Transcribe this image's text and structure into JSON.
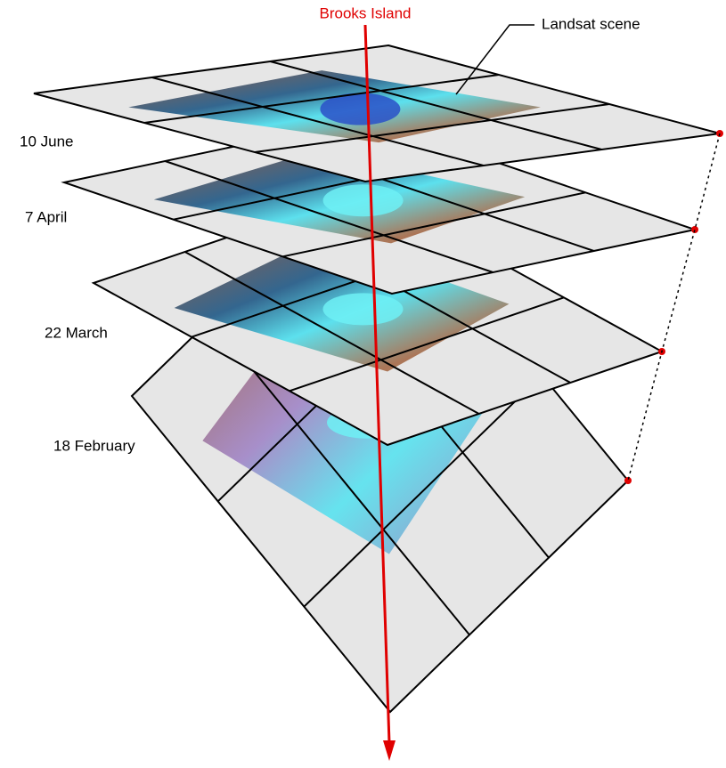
{
  "title_label": "Brooks Island",
  "callout": "Landsat scene",
  "layers": [
    {
      "label": "10 June"
    },
    {
      "label": "7 April"
    },
    {
      "label": "22 March"
    },
    {
      "label": "18 February"
    }
  ]
}
